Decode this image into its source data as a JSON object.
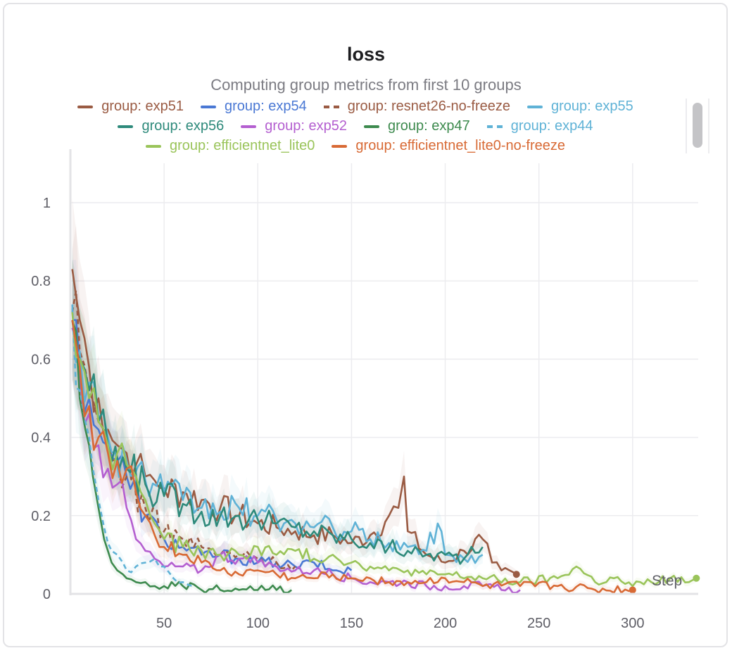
{
  "chart_data": {
    "type": "line",
    "title": "loss",
    "subtitle": "Computing group metrics from first 10 groups",
    "xlabel": "Step",
    "ylabel": "",
    "xlim": [
      0,
      335
    ],
    "ylim": [
      0,
      1.0
    ],
    "x_ticks": [
      50,
      100,
      150,
      200,
      250,
      300
    ],
    "x_tick_labels": [
      "50",
      "100",
      "150",
      "200",
      "250",
      "300"
    ],
    "y_ticks": [
      0,
      0.2,
      0.4,
      0.6,
      0.8,
      1
    ],
    "y_tick_labels": [
      "0",
      "0.2",
      "0.4",
      "0.6",
      "0.8",
      "1"
    ],
    "grid": true,
    "legend_position": "top",
    "series": [
      {
        "name": "group: exp51",
        "color": "#9a5b43",
        "dash": false,
        "end_marker": true,
        "x": [
          1,
          5,
          10,
          15,
          20,
          25,
          30,
          35,
          40,
          45,
          50,
          60,
          70,
          80,
          90,
          100,
          110,
          120,
          130,
          140,
          150,
          160,
          170,
          175,
          178,
          180,
          190,
          200,
          210,
          220,
          225,
          230,
          238
        ],
        "y": [
          0.83,
          0.7,
          0.58,
          0.5,
          0.42,
          0.38,
          0.36,
          0.33,
          0.3,
          0.29,
          0.27,
          0.26,
          0.24,
          0.22,
          0.2,
          0.18,
          0.17,
          0.16,
          0.15,
          0.15,
          0.13,
          0.15,
          0.2,
          0.22,
          0.3,
          0.16,
          0.1,
          0.08,
          0.11,
          0.14,
          0.08,
          0.06,
          0.05
        ]
      },
      {
        "name": "group: exp54",
        "color": "#4a78d4",
        "dash": false,
        "end_marker": false,
        "x": [
          1,
          5,
          10,
          15,
          20,
          25,
          30,
          40,
          50,
          60,
          70,
          80,
          90,
          100,
          110,
          120,
          130,
          140,
          150
        ],
        "y": [
          0.7,
          0.6,
          0.5,
          0.42,
          0.38,
          0.34,
          0.3,
          0.2,
          0.14,
          0.12,
          0.1,
          0.1,
          0.09,
          0.08,
          0.08,
          0.07,
          0.08,
          0.06,
          0.06
        ]
      },
      {
        "name": "group: resnet26-no-freeze",
        "color": "#9a5b43",
        "dash": true,
        "end_marker": false,
        "x": [
          1,
          5,
          10,
          15,
          20,
          25,
          30,
          40,
          50,
          60,
          70,
          80,
          90,
          100,
          110,
          120
        ],
        "y": [
          0.72,
          0.62,
          0.52,
          0.44,
          0.38,
          0.34,
          0.3,
          0.22,
          0.16,
          0.14,
          0.12,
          0.1,
          0.1,
          0.09,
          0.08,
          0.07
        ]
      },
      {
        "name": "group: exp55",
        "color": "#5fb2d6",
        "dash": false,
        "end_marker": false,
        "x": [
          1,
          5,
          10,
          15,
          20,
          30,
          40,
          50,
          60,
          70,
          80,
          90,
          100,
          110,
          120,
          130,
          140,
          150,
          160,
          170,
          180,
          190,
          196,
          200,
          210,
          220
        ],
        "y": [
          0.73,
          0.62,
          0.54,
          0.45,
          0.4,
          0.34,
          0.29,
          0.26,
          0.24,
          0.22,
          0.21,
          0.22,
          0.2,
          0.19,
          0.18,
          0.17,
          0.17,
          0.16,
          0.14,
          0.13,
          0.12,
          0.11,
          0.18,
          0.1,
          0.09,
          0.1
        ]
      },
      {
        "name": "group: exp56",
        "color": "#2e8a7b",
        "dash": false,
        "end_marker": false,
        "x": [
          1,
          5,
          10,
          15,
          20,
          30,
          40,
          50,
          60,
          70,
          80,
          90,
          100,
          110,
          120,
          130,
          140,
          150,
          160,
          170,
          180,
          190,
          200,
          210,
          220
        ],
        "y": [
          0.7,
          0.6,
          0.52,
          0.44,
          0.38,
          0.32,
          0.28,
          0.25,
          0.23,
          0.21,
          0.2,
          0.2,
          0.19,
          0.18,
          0.17,
          0.16,
          0.15,
          0.14,
          0.13,
          0.12,
          0.11,
          0.1,
          0.1,
          0.09,
          0.12
        ]
      },
      {
        "name": "group: exp52",
        "color": "#b45fd0",
        "dash": false,
        "end_marker": false,
        "x": [
          1,
          5,
          10,
          15,
          20,
          25,
          30,
          35,
          40,
          45,
          50,
          60,
          70,
          80,
          90,
          100,
          110,
          120,
          130,
          140,
          150,
          160,
          170,
          180,
          190,
          200,
          210,
          220,
          230,
          240
        ],
        "y": [
          0.68,
          0.56,
          0.46,
          0.38,
          0.32,
          0.28,
          0.22,
          0.14,
          0.11,
          0.09,
          0.07,
          0.07,
          0.06,
          0.1,
          0.09,
          0.08,
          0.07,
          0.06,
          0.06,
          0.05,
          0.04,
          0.03,
          0.03,
          0.03,
          0.02,
          0.02,
          0.02,
          0.02,
          0.01,
          0.01
        ]
      },
      {
        "name": "group: exp47",
        "color": "#3d8a4e",
        "dash": false,
        "end_marker": false,
        "x": [
          1,
          5,
          8,
          10,
          12,
          15,
          18,
          20,
          22,
          25,
          28,
          30,
          35,
          40,
          45,
          50,
          60,
          70,
          80,
          90,
          100,
          110,
          118
        ],
        "y": [
          0.7,
          0.5,
          0.42,
          0.38,
          0.3,
          0.22,
          0.14,
          0.11,
          0.08,
          0.06,
          0.05,
          0.04,
          0.03,
          0.03,
          0.02,
          0.02,
          0.02,
          0.01,
          0.01,
          0.01,
          0.01,
          0.01,
          0.01
        ]
      },
      {
        "name": "group: exp44",
        "color": "#5fb2d6",
        "dash": true,
        "end_marker": false,
        "x": [
          1,
          5,
          8,
          10,
          12,
          15,
          18,
          20,
          22,
          25,
          28,
          30,
          35,
          40,
          45,
          50,
          55,
          60,
          65
        ],
        "y": [
          0.74,
          0.52,
          0.44,
          0.4,
          0.32,
          0.24,
          0.17,
          0.13,
          0.11,
          0.1,
          0.08,
          0.06,
          0.07,
          0.08,
          0.09,
          0.07,
          0.04,
          0.03,
          0.02
        ]
      },
      {
        "name": "group: efficientnet_lite0",
        "color": "#9ac45a",
        "dash": false,
        "end_marker": true,
        "x": [
          1,
          5,
          10,
          15,
          20,
          25,
          30,
          35,
          40,
          45,
          50,
          60,
          70,
          80,
          90,
          100,
          110,
          120,
          130,
          140,
          150,
          160,
          170,
          180,
          190,
          200,
          220,
          240,
          260,
          270,
          280,
          290,
          300,
          310,
          320,
          330,
          334
        ],
        "y": [
          0.72,
          0.6,
          0.5,
          0.44,
          0.38,
          0.36,
          0.33,
          0.3,
          0.24,
          0.18,
          0.14,
          0.12,
          0.11,
          0.1,
          0.1,
          0.12,
          0.1,
          0.11,
          0.09,
          0.1,
          0.08,
          0.07,
          0.06,
          0.06,
          0.05,
          0.05,
          0.04,
          0.03,
          0.04,
          0.07,
          0.03,
          0.04,
          0.02,
          0.03,
          0.04,
          0.03,
          0.04
        ]
      },
      {
        "name": "group: efficientnet_lite0-no-freeze",
        "color": "#d86a35",
        "dash": false,
        "end_marker": true,
        "x": [
          1,
          5,
          10,
          15,
          20,
          25,
          30,
          35,
          40,
          45,
          50,
          60,
          70,
          80,
          90,
          100,
          110,
          120,
          130,
          140,
          150,
          160,
          170,
          180,
          190,
          200,
          210,
          220,
          240,
          260,
          280,
          300
        ],
        "y": [
          0.7,
          0.58,
          0.48,
          0.4,
          0.36,
          0.34,
          0.32,
          0.26,
          0.2,
          0.15,
          0.12,
          0.1,
          0.08,
          0.06,
          0.05,
          0.06,
          0.05,
          0.04,
          0.04,
          0.05,
          0.04,
          0.04,
          0.03,
          0.03,
          0.03,
          0.04,
          0.03,
          0.02,
          0.02,
          0.02,
          0.01,
          0.01
        ]
      }
    ]
  }
}
